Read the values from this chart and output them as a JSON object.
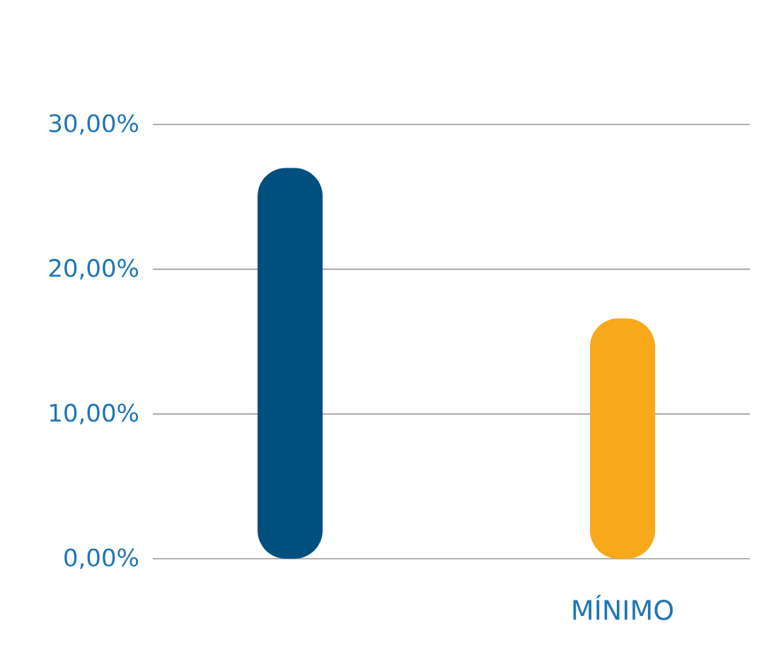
{
  "chart_data": {
    "type": "bar",
    "categories": [
      null,
      "MÍNIMO"
    ],
    "values": [
      27.0,
      16.6
    ],
    "colors": [
      "#00507f",
      "#f7a81b"
    ],
    "ylim": [
      0,
      30
    ],
    "yticks": [
      {
        "value": 0,
        "label": "0,00%"
      },
      {
        "value": 10,
        "label": "10,00%"
      },
      {
        "value": 20,
        "label": "20,00%"
      },
      {
        "value": 30,
        "label": "30,00%"
      }
    ],
    "grid": "y"
  }
}
